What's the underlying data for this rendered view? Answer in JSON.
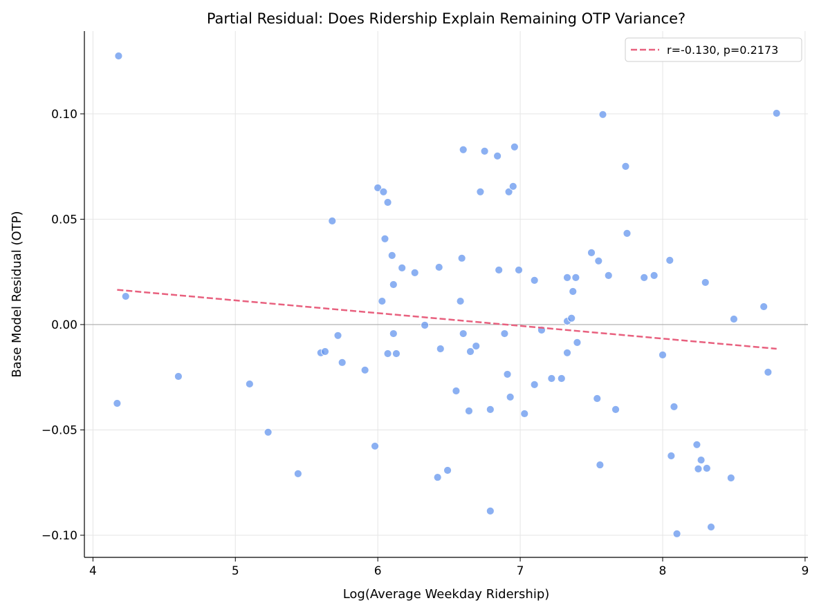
{
  "chart_data": {
    "type": "scatter",
    "title": "Partial Residual: Does Ridership Explain Remaining OTP Variance?",
    "xlabel": "Log(Average Weekday Ridership)",
    "ylabel": "Base Model Residual (OTP)",
    "xlim": [
      3.94,
      9.02
    ],
    "ylim": [
      -0.1105,
      0.1393
    ],
    "xticks": [
      4,
      5,
      6,
      7,
      8,
      9
    ],
    "xtick_labels": [
      "4",
      "5",
      "6",
      "7",
      "8",
      "9"
    ],
    "yticks": [
      -0.1,
      -0.05,
      0.0,
      0.05,
      0.1
    ],
    "ytick_labels": [
      "−0.10",
      "−0.05",
      "0.00",
      "0.05",
      "0.10"
    ],
    "grid": true,
    "legend_placement": "top-right",
    "point_color": "#6495ED",
    "trend_color": "#E8607E",
    "zero_line": 0,
    "trend": {
      "name": "r=-0.130, p=0.2173",
      "x": [
        4.17,
        8.8
      ],
      "y": [
        0.0165,
        -0.0115
      ]
    },
    "points": [
      [
        4.18,
        0.1275
      ],
      [
        4.23,
        0.0134
      ],
      [
        4.17,
        -0.0374
      ],
      [
        4.6,
        -0.0246
      ],
      [
        5.1,
        -0.0282
      ],
      [
        5.23,
        -0.0511
      ],
      [
        5.44,
        -0.0708
      ],
      [
        5.68,
        0.0492
      ],
      [
        5.6,
        -0.0134
      ],
      [
        5.63,
        -0.0128
      ],
      [
        5.72,
        -0.0052
      ],
      [
        5.75,
        -0.018
      ],
      [
        5.91,
        -0.0216
      ],
      [
        5.98,
        -0.0577
      ],
      [
        6.0,
        0.0649
      ],
      [
        6.04,
        0.063
      ],
      [
        6.07,
        0.058
      ],
      [
        6.05,
        0.0407
      ],
      [
        6.1,
        0.0328
      ],
      [
        6.11,
        0.019
      ],
      [
        6.03,
        0.0111
      ],
      [
        6.11,
        -0.0043
      ],
      [
        6.07,
        -0.0138
      ],
      [
        6.13,
        -0.0138
      ],
      [
        6.17,
        0.0269
      ],
      [
        6.26,
        0.0246
      ],
      [
        6.33,
        -0.0003
      ],
      [
        6.43,
        0.0272
      ],
      [
        6.44,
        -0.0115
      ],
      [
        6.42,
        -0.0725
      ],
      [
        6.49,
        -0.0692
      ],
      [
        6.55,
        -0.0315
      ],
      [
        6.58,
        0.0111
      ],
      [
        6.59,
        0.0315
      ],
      [
        6.6,
        0.083
      ],
      [
        6.6,
        -0.0043
      ],
      [
        6.65,
        -0.0128
      ],
      [
        6.64,
        -0.041
      ],
      [
        6.69,
        -0.0102
      ],
      [
        6.72,
        0.063
      ],
      [
        6.75,
        0.0823
      ],
      [
        6.79,
        -0.0403
      ],
      [
        6.79,
        -0.0885
      ],
      [
        6.84,
        0.08
      ],
      [
        6.85,
        0.0259
      ],
      [
        6.89,
        -0.0043
      ],
      [
        6.92,
        0.063
      ],
      [
        6.91,
        -0.0236
      ],
      [
        6.93,
        -0.0344
      ],
      [
        6.95,
        0.0656
      ],
      [
        6.96,
        0.0843
      ],
      [
        6.99,
        0.0259
      ],
      [
        7.03,
        -0.0423
      ],
      [
        7.1,
        0.021
      ],
      [
        7.1,
        -0.0285
      ],
      [
        7.15,
        -0.0026
      ],
      [
        7.22,
        -0.0256
      ],
      [
        7.29,
        -0.0256
      ],
      [
        7.33,
        0.0016
      ],
      [
        7.33,
        -0.0134
      ],
      [
        7.33,
        0.0223
      ],
      [
        7.36,
        0.003
      ],
      [
        7.37,
        0.0157
      ],
      [
        7.39,
        0.0223
      ],
      [
        7.4,
        -0.0085
      ],
      [
        7.5,
        0.0341
      ],
      [
        7.54,
        -0.0351
      ],
      [
        7.55,
        0.0302
      ],
      [
        7.56,
        -0.0666
      ],
      [
        7.58,
        0.0997
      ],
      [
        7.62,
        0.0233
      ],
      [
        7.67,
        -0.0403
      ],
      [
        7.74,
        0.0751
      ],
      [
        7.75,
        0.0433
      ],
      [
        7.87,
        0.0223
      ],
      [
        7.94,
        0.0233
      ],
      [
        8.0,
        -0.0144
      ],
      [
        8.05,
        0.0305
      ],
      [
        8.06,
        -0.0623
      ],
      [
        8.08,
        -0.039
      ],
      [
        8.1,
        -0.0993
      ],
      [
        8.24,
        -0.057
      ],
      [
        8.25,
        -0.0685
      ],
      [
        8.27,
        -0.0643
      ],
      [
        8.3,
        0.02
      ],
      [
        8.31,
        -0.0682
      ],
      [
        8.34,
        -0.0961
      ],
      [
        8.48,
        -0.0728
      ],
      [
        8.5,
        0.0026
      ],
      [
        8.71,
        0.0085
      ],
      [
        8.74,
        -0.0226
      ],
      [
        8.8,
        0.1003
      ]
    ]
  }
}
